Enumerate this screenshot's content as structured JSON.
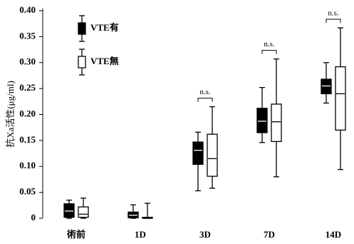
{
  "chart_data": {
    "type": "box",
    "y_label": "抗Xa活性(μg/ml)",
    "categories": [
      "術前",
      "1D",
      "3D",
      "7D",
      "14D"
    ],
    "annotations": [
      null,
      null,
      "n.s.",
      "n.s.",
      "n.s."
    ],
    "series": [
      {
        "name": "VTE有",
        "color": "#000000",
        "low": [
          0,
          0,
          0.053,
          0.146,
          0.222
        ],
        "q1": [
          0.002,
          0.001,
          0.104,
          0.165,
          0.24
        ],
        "median": [
          0.014,
          0.006,
          0.131,
          0.187,
          0.255
        ],
        "q3": [
          0.028,
          0.012,
          0.147,
          0.212,
          0.268
        ],
        "high": [
          0.035,
          0.026,
          0.166,
          0.252,
          0.3
        ]
      },
      {
        "name": "VTE無",
        "color": "#ffffff",
        "low": [
          0,
          0,
          0.058,
          0.08,
          0.094
        ],
        "q1": [
          0.002,
          0,
          0.081,
          0.148,
          0.17
        ],
        "median": [
          0.008,
          0.001,
          0.115,
          0.186,
          0.24
        ],
        "q3": [
          0.022,
          0.002,
          0.162,
          0.22,
          0.292
        ],
        "high": [
          0.039,
          0.029,
          0.215,
          0.307,
          0.367
        ]
      }
    ],
    "ylim": [
      0,
      0.4
    ],
    "yticks": [
      0,
      0.05,
      {
        "value": 0.1,
        "label": "0.10"
      },
      0.15,
      {
        "value": 0.2,
        "label": "0.20"
      },
      0.25,
      {
        "value": 0.3,
        "label": "0.30"
      },
      0.35,
      {
        "value": 0.4,
        "label": "0.40"
      }
    ],
    "legend": "upper left"
  }
}
